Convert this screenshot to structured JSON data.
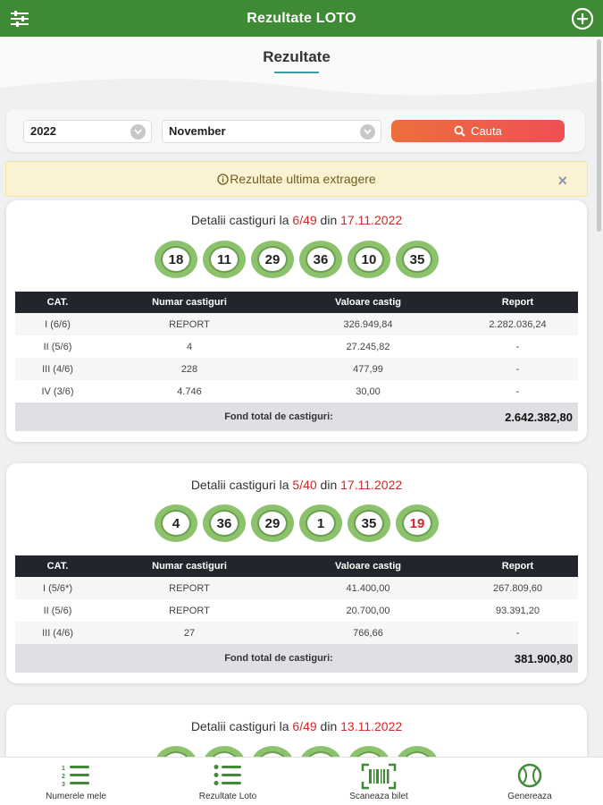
{
  "appbar": {
    "title": "Rezultate LOTO",
    "menu_icon": "sliders-icon",
    "add_icon": "plus-circle-icon"
  },
  "page": {
    "title": "Rezultate"
  },
  "filters": {
    "year": "2022",
    "month": "November",
    "search_label": "Cauta"
  },
  "alert": {
    "text": "Rezultate ultima extragere",
    "close": "×"
  },
  "draws": [
    {
      "prefix": "Detalii castiguri la ",
      "game": "6/49",
      "mid": " din ",
      "date": "17.11.2022",
      "numbers": [
        "18",
        "11",
        "29",
        "36",
        "10",
        "35"
      ],
      "headers": [
        "CAT.",
        "Numar castiguri",
        "Valoare castig",
        "Report"
      ],
      "rows": [
        [
          "I (6/6)",
          "REPORT",
          "326.949,84",
          "2.282.036,24"
        ],
        [
          "II (5/6)",
          "4",
          "27.245,82",
          "-"
        ],
        [
          "III (4/6)",
          "228",
          "477,99",
          "-"
        ],
        [
          "IV (3/6)",
          "4.746",
          "30,00",
          "-"
        ]
      ],
      "total_label": "Fond total de castiguri:",
      "total_value": "2.642.382,80"
    },
    {
      "prefix": "Detalii castiguri la ",
      "game": "5/40",
      "mid": " din ",
      "date": "17.11.2022",
      "numbers": [
        "4",
        "36",
        "29",
        "1",
        "35",
        "19"
      ],
      "headers": [
        "CAT.",
        "Numar castiguri",
        "Valoare castig",
        "Report"
      ],
      "rows": [
        [
          "I (5/6*)",
          "REPORT",
          "41.400,00",
          "267.809,60"
        ],
        [
          "II (5/6)",
          "REPORT",
          "20.700,00",
          "93.391,20"
        ],
        [
          "III (4/6)",
          "27",
          "766,66",
          "-"
        ]
      ],
      "total_label": "Fond total de castiguri:",
      "total_value": "381.900,80"
    },
    {
      "prefix": "Detalii castiguri la ",
      "game": "6/49",
      "mid": " din ",
      "date": "13.11.2022"
    }
  ],
  "nav": [
    {
      "label": "Numerele mele",
      "icon": "numbered-list-icon"
    },
    {
      "label": "Rezultate Loto",
      "icon": "bullet-list-icon"
    },
    {
      "label": "Scaneaza bilet",
      "icon": "barcode-scan-icon"
    },
    {
      "label": "Genereaza",
      "icon": "ball-icon"
    }
  ],
  "colors": {
    "primary": "#3f8a35",
    "accent_red": "#d02828",
    "button_orange": "#ec6f3c"
  }
}
